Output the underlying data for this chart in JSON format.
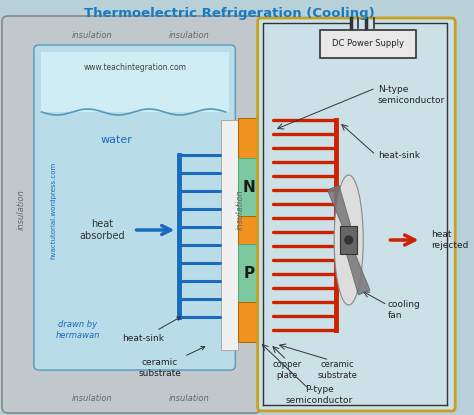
{
  "title": "Thermoelectric Refrigeration (Cooling)",
  "title_color": "#1a7abf",
  "bg_color": "#b8d0d8",
  "outer_insulation_color": "#c0c8cc",
  "inner_water_color": "#b8dce8",
  "water_top_color": "#d0ecf4",
  "orange_color": "#f0921e",
  "green_color": "#7ec8a0",
  "red_color": "#cc2200",
  "blue_color": "#1a6abf",
  "gold_border": "#c8a020",
  "right_bg": "#cce0e8",
  "hatch_color": "#e8e0d8",
  "white_strip": "#f0f0f0",
  "website1": "www.teachintegration.com",
  "website2": "hvactutorial.wordpress.com",
  "ins_top1": "insulation",
  "ins_top2": "insulation",
  "ins_left": "insulation",
  "ins_right": "insulation",
  "ins_bot1": "insulation",
  "ins_bot2": "insulation",
  "lbl_water": "water",
  "lbl_heat_abs": "heat\nabsorbed",
  "lbl_heat_sink_l": "heat-sink",
  "lbl_ceramic_l": "ceramic\nsubstrate",
  "lbl_N": "N",
  "lbl_P": "P",
  "lbl_dc": "DC Power Supply",
  "lbl_n_type": "N-type\nsemiconductor",
  "lbl_heat_sink_r": "heat-sink",
  "lbl_heat_rej": "heat\nrejected",
  "lbl_cool_fan": "cooling\nfan",
  "lbl_copper": "copper\nplate",
  "lbl_ceramic_r": "ceramic\nsubstrate",
  "lbl_p_type": "P-type\nsemiconductor",
  "lbl_drawn": "drawn by\nhermawan"
}
